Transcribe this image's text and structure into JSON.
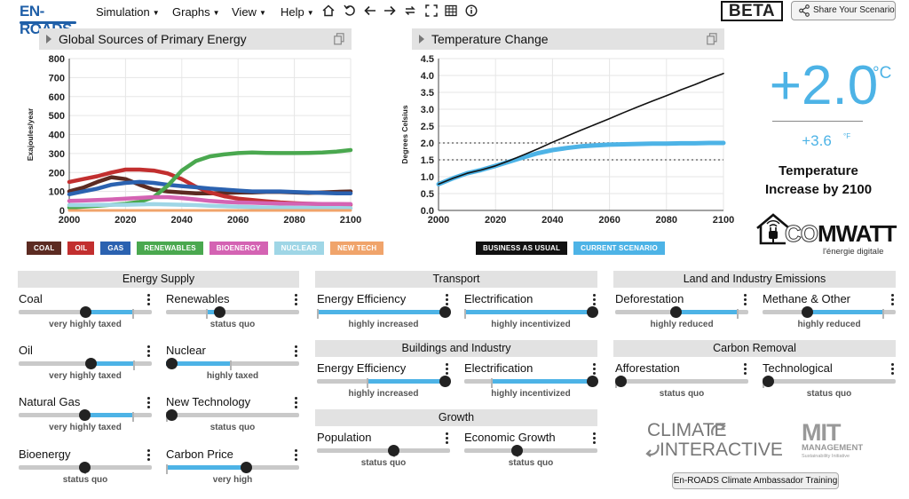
{
  "app": {
    "logo_text": "EN-ROADS",
    "menus": [
      {
        "label": "Simulation"
      },
      {
        "label": "Graphs"
      },
      {
        "label": "View"
      },
      {
        "label": "Help"
      }
    ],
    "toolbar_icons": [
      "home-icon",
      "reset-icon",
      "undo-icon",
      "redo-icon",
      "swap-icon",
      "fullscreen-icon",
      "table-icon",
      "info-icon"
    ],
    "beta_label": "BETA",
    "share_label": "Share Your Scenario"
  },
  "graph_left": {
    "title": "Global Sources of Primary Energy",
    "legend": [
      {
        "label": "COAL",
        "color": "#5c2b22"
      },
      {
        "label": "OIL",
        "color": "#c22f2f"
      },
      {
        "label": "GAS",
        "color": "#2b62b0"
      },
      {
        "label": "RENEWABLES",
        "color": "#4aa84f"
      },
      {
        "label": "BIOENERGY",
        "color": "#d463b3"
      },
      {
        "label": "NUCLEAR",
        "color": "#9fd6e6"
      },
      {
        "label": "NEW TECH",
        "color": "#f0a46b"
      }
    ]
  },
  "graph_right": {
    "title": "Temperature Change",
    "legend": [
      {
        "label": "BUSINESS AS USUAL",
        "color": "#111111"
      },
      {
        "label": "CURRENT SCENARIO",
        "color": "#4db3e6"
      }
    ]
  },
  "chart_data": [
    {
      "type": "line",
      "title": "Global Sources of Primary Energy",
      "xlabel": "",
      "ylabel": "Exajoules/year",
      "xlim": [
        2000,
        2100
      ],
      "ylim": [
        0,
        800
      ],
      "xticks": [
        2000,
        2020,
        2040,
        2060,
        2080,
        2100
      ],
      "yticks": [
        0,
        100,
        200,
        300,
        400,
        500,
        600,
        700,
        800
      ],
      "x": [
        2000,
        2005,
        2010,
        2015,
        2020,
        2025,
        2030,
        2035,
        2040,
        2045,
        2050,
        2055,
        2060,
        2065,
        2070,
        2075,
        2080,
        2085,
        2090,
        2095,
        2100
      ],
      "series": [
        {
          "name": "COAL",
          "color": "#5c2b22",
          "values": [
            100,
            120,
            150,
            175,
            165,
            135,
            110,
            100,
            95,
            90,
            90,
            92,
            95,
            95,
            98,
            98,
            95,
            92,
            95,
            98,
            100
          ]
        },
        {
          "name": "OIL",
          "color": "#c22f2f",
          "values": [
            150,
            165,
            180,
            200,
            215,
            215,
            210,
            195,
            165,
            125,
            95,
            75,
            62,
            55,
            48,
            42,
            38,
            35,
            33,
            32,
            30
          ]
        },
        {
          "name": "GAS",
          "color": "#2b62b0",
          "values": [
            85,
            100,
            115,
            135,
            145,
            150,
            145,
            135,
            128,
            122,
            115,
            110,
            105,
            100,
            100,
            100,
            97,
            95,
            92,
            90,
            90
          ]
        },
        {
          "name": "RENEWABLES",
          "color": "#4aa84f",
          "values": [
            15,
            20,
            25,
            30,
            35,
            45,
            70,
            130,
            210,
            260,
            285,
            295,
            302,
            305,
            303,
            302,
            302,
            303,
            305,
            310,
            318
          ]
        },
        {
          "name": "BIOENERGY",
          "color": "#d463b3",
          "values": [
            50,
            52,
            55,
            58,
            62,
            66,
            70,
            70,
            65,
            58,
            50,
            45,
            42,
            40,
            38,
            36,
            35,
            35,
            34,
            34,
            33
          ]
        },
        {
          "name": "NUCLEAR",
          "color": "#9fd6e6",
          "values": [
            28,
            28,
            29,
            30,
            30,
            32,
            33,
            32,
            30,
            28,
            25,
            22,
            20,
            18,
            16,
            15,
            14,
            14,
            13,
            13,
            12
          ]
        },
        {
          "name": "NEW TECH",
          "color": "#f0a46b",
          "values": [
            0,
            0,
            0,
            0,
            0,
            0,
            0,
            0,
            0,
            0,
            0,
            0,
            0,
            0,
            0,
            0,
            0,
            0,
            0,
            0,
            0
          ]
        }
      ]
    },
    {
      "type": "line",
      "title": "Temperature Change",
      "xlabel": "",
      "ylabel": "Degrees Celsius",
      "xlim": [
        2000,
        2100
      ],
      "ylim": [
        0,
        4.5
      ],
      "xticks": [
        2000,
        2020,
        2040,
        2060,
        2080,
        2100
      ],
      "yticks": [
        0.0,
        0.5,
        1.0,
        1.5,
        2.0,
        2.5,
        3.0,
        3.5,
        4.0,
        4.5
      ],
      "reference_lines": [
        1.5,
        2.0
      ],
      "x": [
        2000,
        2005,
        2010,
        2015,
        2020,
        2025,
        2030,
        2035,
        2040,
        2045,
        2050,
        2055,
        2060,
        2065,
        2070,
        2075,
        2080,
        2085,
        2090,
        2095,
        2100
      ],
      "series": [
        {
          "name": "BUSINESS AS USUAL",
          "color": "#111111",
          "values": [
            0.78,
            0.95,
            1.1,
            1.2,
            1.32,
            1.48,
            1.65,
            1.83,
            2.02,
            2.2,
            2.38,
            2.55,
            2.72,
            2.9,
            3.07,
            3.24,
            3.4,
            3.57,
            3.73,
            3.9,
            4.06
          ]
        },
        {
          "name": "CURRENT SCENARIO",
          "color": "#4db3e6",
          "values": [
            0.78,
            0.95,
            1.1,
            1.2,
            1.32,
            1.45,
            1.58,
            1.7,
            1.79,
            1.85,
            1.9,
            1.93,
            1.95,
            1.96,
            1.97,
            1.98,
            1.98,
            1.99,
            1.99,
            2.0,
            2.0
          ]
        }
      ]
    }
  ],
  "temperature": {
    "celsius": "+2.0",
    "celsius_unit": "°C",
    "fahrenheit": "+3.6",
    "fahrenheit_unit": "°F",
    "caption": "Temperature Increase by 2100"
  },
  "partner": {
    "brand_co": "CO",
    "brand_rest": "MWATT",
    "tagline": "l'énergie digitale"
  },
  "sections": {
    "energy_supply": "Energy Supply",
    "transport": "Transport",
    "buildings": "Buildings and Industry",
    "growth": "Growth",
    "land": "Land and Industry Emissions",
    "carbon_removal": "Carbon Removal"
  },
  "sliders": {
    "coal": {
      "label": "Coal",
      "status": "very highly taxed",
      "value": 0.5,
      "fill_from": 0.5,
      "fill_to": 0.85,
      "tick": 0.85
    },
    "renewables": {
      "label": "Renewables",
      "status": "status quo",
      "value": 0.4,
      "fill_from": 0.3,
      "fill_to": 0.4,
      "tick": 0.3
    },
    "oil": {
      "label": "Oil",
      "status": "very highly taxed",
      "value": 0.54,
      "fill_from": 0.54,
      "fill_to": 0.86,
      "tick": 0.86
    },
    "nuclear": {
      "label": "Nuclear",
      "status": "highly taxed",
      "value": 0.0,
      "fill_from": 0.0,
      "fill_to": 0.48,
      "tick": 0.48
    },
    "natural_gas": {
      "label": "Natural Gas",
      "status": "very highly taxed",
      "value": 0.49,
      "fill_from": 0.49,
      "fill_to": 0.85,
      "tick": 0.85
    },
    "new_technology": {
      "label": "New Technology",
      "status": "status quo",
      "value": 0.0,
      "fill_from": 0.0,
      "fill_to": 0.0,
      "tick": 0.0
    },
    "bioenergy": {
      "label": "Bioenergy",
      "status": "status quo",
      "value": 0.49,
      "fill_from": 0.49,
      "fill_to": 0.49,
      "tick": 0.49
    },
    "carbon_price": {
      "label": "Carbon Price",
      "status": "very high",
      "value": 0.6,
      "fill_from": 0.0,
      "fill_to": 0.6,
      "tick": 0.0
    },
    "transport_efficiency": {
      "label": "Energy Efficiency",
      "status": "highly increased",
      "value": 0.98,
      "fill_from": 0.0,
      "fill_to": 0.98,
      "tick": 0.0
    },
    "transport_electrification": {
      "label": "Electrification",
      "status": "highly incentivized",
      "value": 0.98,
      "fill_from": 0.0,
      "fill_to": 0.98,
      "tick": 0.0
    },
    "buildings_efficiency": {
      "label": "Energy Efficiency",
      "status": "highly increased",
      "value": 0.98,
      "fill_from": 0.37,
      "fill_to": 0.98,
      "tick": 0.37
    },
    "buildings_electrification": {
      "label": "Electrification",
      "status": "highly incentivized",
      "value": 0.98,
      "fill_from": 0.2,
      "fill_to": 0.98,
      "tick": 0.2
    },
    "population": {
      "label": "Population",
      "status": "status quo",
      "value": 0.57,
      "fill_from": 0.57,
      "fill_to": 0.57,
      "tick": 0.57
    },
    "economic_growth": {
      "label": "Economic Growth",
      "status": "status quo",
      "value": 0.39,
      "fill_from": 0.39,
      "fill_to": 0.39,
      "tick": 0.39
    },
    "deforestation": {
      "label": "Deforestation",
      "status": "highly reduced",
      "value": 0.45,
      "fill_from": 0.45,
      "fill_to": 0.91,
      "tick": 0.91
    },
    "methane": {
      "label": "Methane & Other",
      "status": "highly reduced",
      "value": 0.33,
      "fill_from": 0.33,
      "fill_to": 0.9,
      "tick": 0.9
    },
    "afforestation": {
      "label": "Afforestation",
      "status": "status quo",
      "value": 0.0,
      "fill_from": 0.0,
      "fill_to": 0.0,
      "tick": 0.0
    },
    "technological": {
      "label": "Technological",
      "status": "status quo",
      "value": 0.0,
      "fill_from": 0.0,
      "fill_to": 0.0,
      "tick": 0.0
    }
  },
  "footer": {
    "ci_line1": "CLIMATE",
    "ci_line2": "INTERACTIVE",
    "mit_line1": "MIT",
    "mit_line2": "MANAGEMENT",
    "mit_line3": "Sustainability Initiative",
    "training_label": "En-ROADS Climate Ambassador Training"
  }
}
